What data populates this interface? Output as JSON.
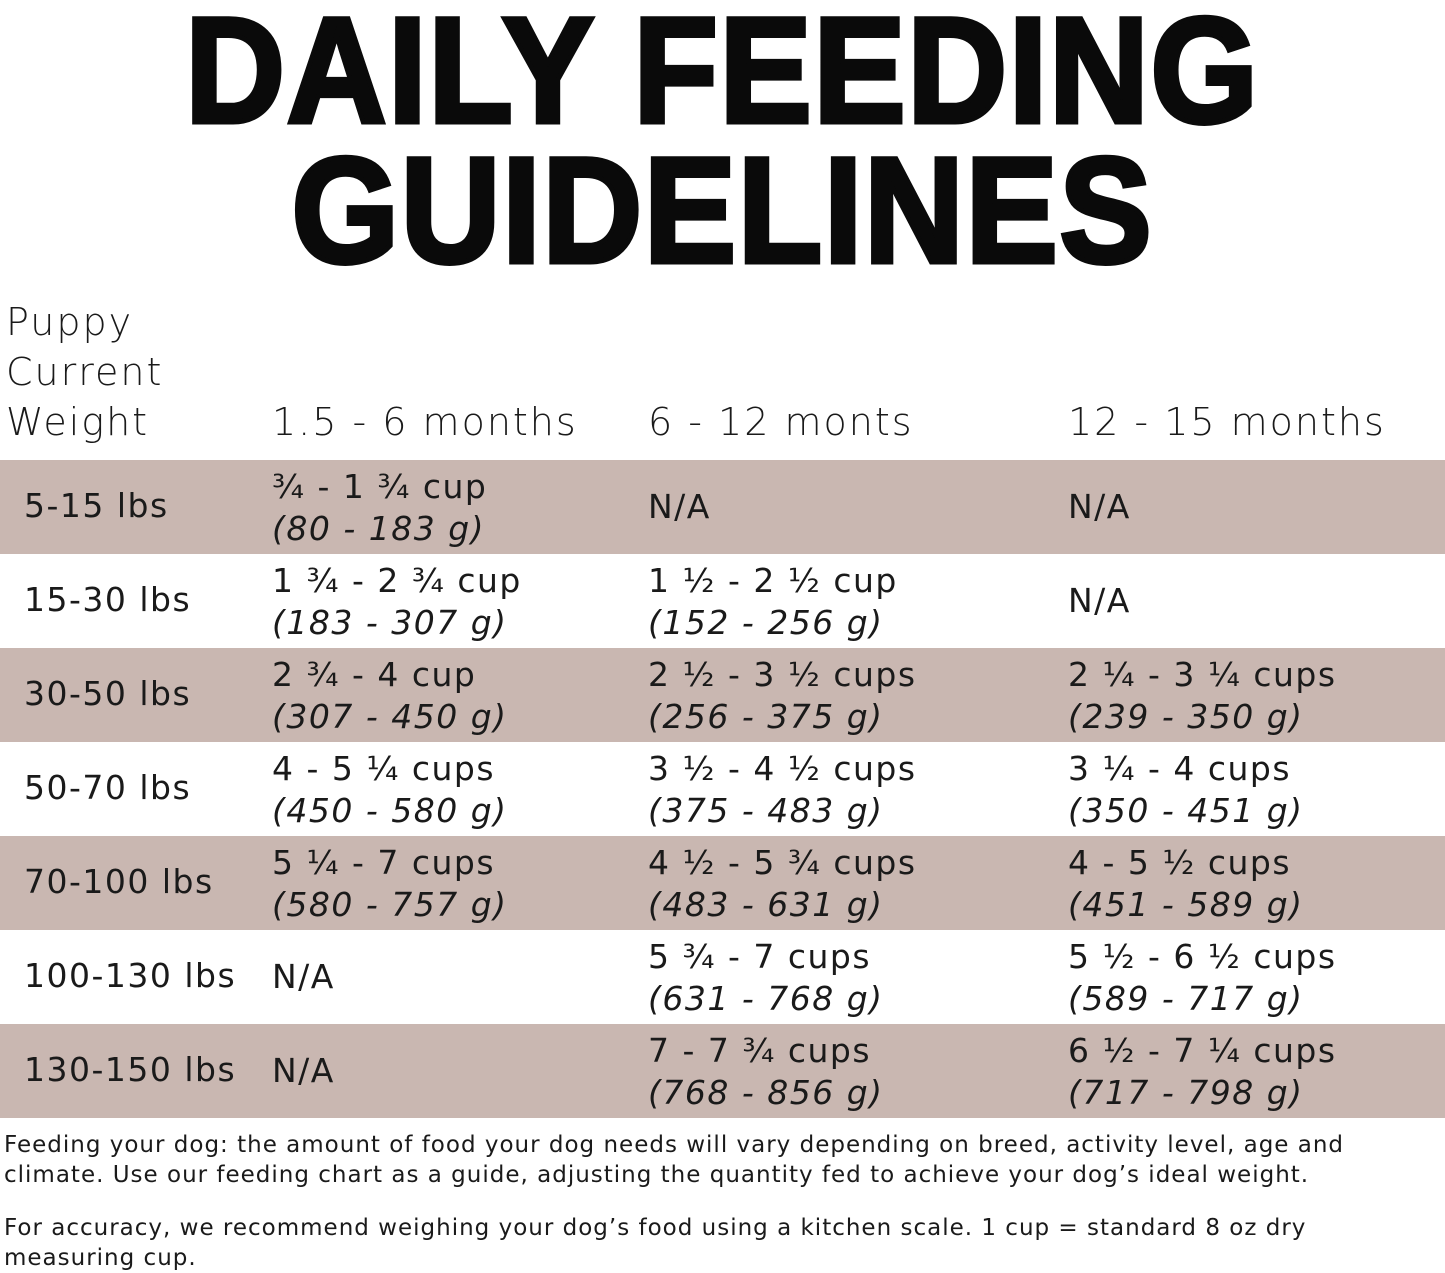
{
  "title": {
    "line1": "DAILY FEEDING",
    "line2": "GUIDELINES"
  },
  "table": {
    "header": {
      "weight": [
        "Puppy",
        "Current",
        "Weight"
      ],
      "columns": [
        "1.5 - 6 months",
        "6 - 12 monts",
        "12 - 15 months"
      ]
    },
    "shade_color": "#c9b7b1",
    "rows": [
      {
        "weight": "5-15 lbs",
        "cells": [
          {
            "cups": "¾ - 1 ¾ cup",
            "grams": "(80 - 183 g)"
          },
          {
            "cups": "N/A",
            "grams": ""
          },
          {
            "cups": "N/A",
            "grams": ""
          }
        ]
      },
      {
        "weight": "15-30 lbs",
        "cells": [
          {
            "cups": "1 ¾ - 2 ¾ cup",
            "grams": "(183 - 307 g)"
          },
          {
            "cups": "1 ½ - 2 ½ cup",
            "grams": "(152 - 256 g)"
          },
          {
            "cups": "N/A",
            "grams": ""
          }
        ]
      },
      {
        "weight": "30-50 lbs",
        "cells": [
          {
            "cups": "2 ¾ - 4 cup",
            "grams": "(307 - 450 g)"
          },
          {
            "cups": "2 ½ - 3 ½ cups",
            "grams": "(256 - 375 g)"
          },
          {
            "cups": "2 ¼ - 3 ¼ cups",
            "grams": "(239 - 350 g)"
          }
        ]
      },
      {
        "weight": "50-70 lbs",
        "cells": [
          {
            "cups": "4 - 5 ¼ cups",
            "grams": "(450 - 580 g)"
          },
          {
            "cups": "3 ½ - 4 ½ cups",
            "grams": "(375 - 483 g)"
          },
          {
            "cups": "3 ¼  - 4 cups",
            "grams": "(350 - 451 g)"
          }
        ]
      },
      {
        "weight": "70-100 lbs",
        "cells": [
          {
            "cups": "5 ¼ - 7 cups",
            "grams": "(580 - 757 g)"
          },
          {
            "cups": "4 ½ - 5 ¾ cups",
            "grams": "(483 - 631 g)"
          },
          {
            "cups": "4 - 5 ½ cups",
            "grams": "(451 - 589 g)"
          }
        ]
      },
      {
        "weight": "100-130 lbs",
        "cells": [
          {
            "cups": "N/A",
            "grams": ""
          },
          {
            "cups": "5 ¾ - 7 cups",
            "grams": "(631 - 768 g)"
          },
          {
            "cups": "5 ½ - 6 ½ cups",
            "grams": "(589 - 717 g)"
          }
        ]
      },
      {
        "weight": "130-150 lbs",
        "cells": [
          {
            "cups": "N/A",
            "grams": ""
          },
          {
            "cups": "7 - 7 ¾ cups",
            "grams": "(768 - 856 g)"
          },
          {
            "cups": "6 ½ - 7 ¼ cups",
            "grams": "(717 - 798 g)"
          }
        ]
      }
    ]
  },
  "notes": [
    "Feeding your dog: the amount of food your dog needs will vary depending on breed, activity level, age and climate. Use our feeding chart as a guide, adjusting the quantity fed to achieve your dog’s ideal weight.",
    "For accuracy, we recommend weighing your dog’s food using a kitchen scale. 1 cup = standard 8 oz dry measuring cup."
  ]
}
